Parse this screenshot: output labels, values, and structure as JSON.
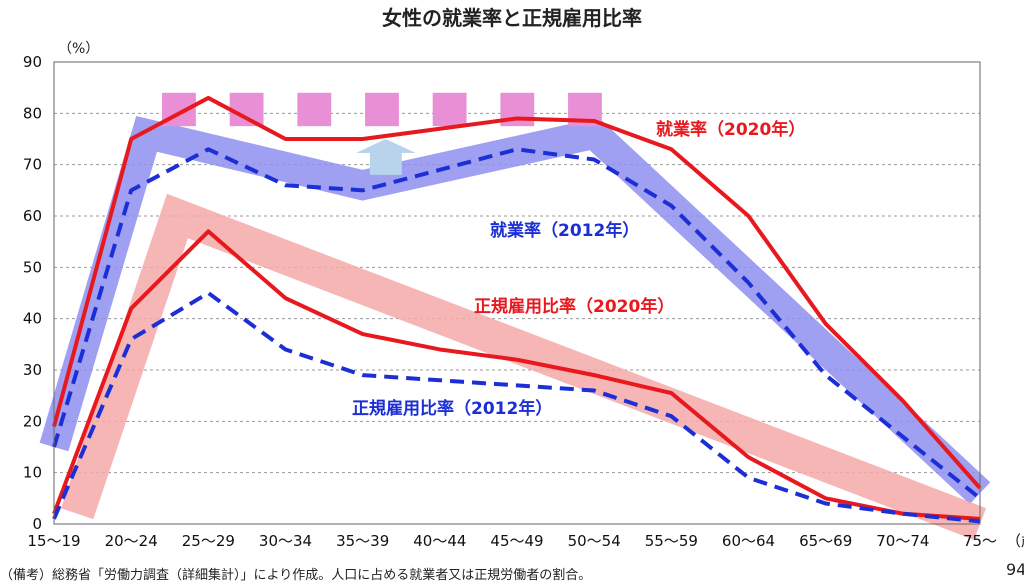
{
  "chart_data": {
    "type": "line",
    "title": "女性の就業率と正規雇用比率",
    "y_unit": "（%）",
    "ylim": [
      0,
      90
    ],
    "yticks": [
      0,
      10,
      20,
      30,
      40,
      50,
      60,
      70,
      80,
      90
    ],
    "x_unit": "（歳）",
    "categories": [
      "15～19",
      "20～24",
      "25～29",
      "30～34",
      "35～39",
      "40～44",
      "45～49",
      "50～54",
      "55～59",
      "60～64",
      "65～69",
      "70～74",
      "75～"
    ],
    "grid": true,
    "series": [
      {
        "name": "就業率（2020年）",
        "color": "#e8191e",
        "dash": false,
        "values": [
          19,
          75,
          83,
          75,
          75,
          77,
          79,
          78.5,
          73,
          60,
          39,
          24,
          7
        ]
      },
      {
        "name": "就業率（2012年）",
        "color": "#1c2fd6",
        "dash": true,
        "values": [
          15,
          65,
          73,
          66,
          65,
          69,
          73,
          71,
          62,
          47,
          29,
          17,
          5
        ]
      },
      {
        "name": "正規雇用比率（2020年）",
        "color": "#e8191e",
        "dash": false,
        "values": [
          2,
          42,
          57,
          44,
          37,
          34,
          32,
          29,
          25.5,
          13,
          5,
          2,
          1
        ]
      },
      {
        "name": "正規雇用比率（2012年）",
        "color": "#1c2fd6",
        "dash": true,
        "values": [
          1,
          36,
          45,
          34,
          29,
          28,
          27,
          26,
          21,
          9,
          4,
          2,
          0.5
        ]
      }
    ],
    "trend_bands": [
      {
        "color": "#8f8ff0",
        "points": [
          [
            0,
            15
          ],
          [
            1.2,
            76
          ],
          [
            4,
            66
          ],
          [
            7,
            76
          ],
          [
            12,
            6
          ]
        ]
      },
      {
        "color": "#f4a9a9",
        "points": [
          [
            0.3,
            2
          ],
          [
            1.6,
            60
          ],
          [
            12,
            0
          ]
        ]
      }
    ],
    "dashed_bar": {
      "color": "#e98fd6",
      "x_from": 1.4,
      "x_to": 7.1,
      "y_from": 77.5,
      "y_to": 84,
      "segments": 7
    },
    "arrow": {
      "color": "#b8d4ec",
      "x": 4.3,
      "y_from": 68,
      "y_to": 75
    },
    "footnote": "（備考）総務省「労働力調査（詳細集計）」により作成。人口に占める就業者又は正規労働者の割合。",
    "page_number": "94"
  }
}
